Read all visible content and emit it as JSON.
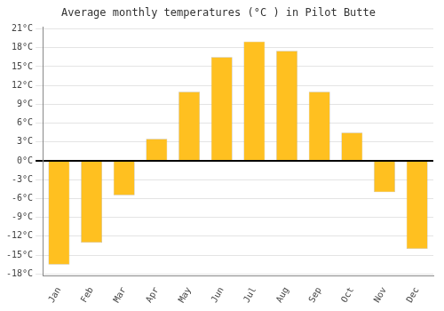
{
  "chart_data": {
    "type": "bar",
    "title": "Average monthly temperatures (°C ) in Pilot Butte",
    "categories": [
      "Jan",
      "Feb",
      "Mar",
      "Apr",
      "May",
      "Jun",
      "Jul",
      "Aug",
      "Sep",
      "Oct",
      "Nov",
      "Dec"
    ],
    "values": [
      -16.5,
      -13.0,
      -5.5,
      3.5,
      11.0,
      16.5,
      19.0,
      17.5,
      11.0,
      4.5,
      -5.0,
      -14.0
    ],
    "color": "#FFC020",
    "ylim": [
      -18.3,
      21.3
    ],
    "yticks": [
      {
        "value": -18,
        "label": "-18°C"
      },
      {
        "value": -15,
        "label": "-15°C"
      },
      {
        "value": -12,
        "label": "-12°C"
      },
      {
        "value": -9,
        "label": "-9°C"
      },
      {
        "value": -6,
        "label": "-6°C"
      },
      {
        "value": -3,
        "label": "-3°C"
      },
      {
        "value": 0,
        "label": "0°C"
      },
      {
        "value": 3,
        "label": "3°C"
      },
      {
        "value": 6,
        "label": "6°C"
      },
      {
        "value": 9,
        "label": "9°C"
      },
      {
        "value": 12,
        "label": "12°C"
      },
      {
        "value": 15,
        "label": "15°C"
      },
      {
        "value": 18,
        "label": "18°C"
      },
      {
        "value": 21,
        "label": "21°C"
      }
    ],
    "grid": true
  }
}
